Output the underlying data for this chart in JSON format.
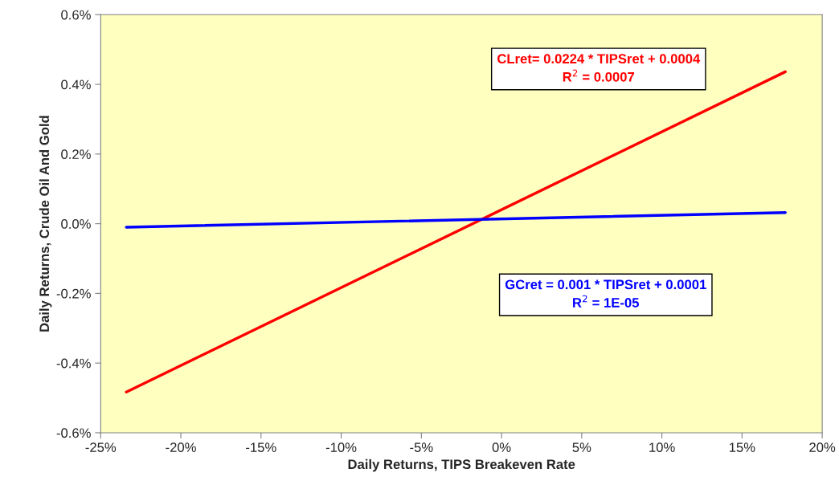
{
  "chart_data": {
    "type": "line",
    "xlabel": "Daily Returns, TIPS Breakeven Rate",
    "ylabel": "Daily Returns, Crude Oil And Gold",
    "x": [
      -0.234,
      0.177
    ],
    "series": [
      {
        "color": "#ff0000",
        "values": [
          -0.00483,
          0.00436
        ]
      },
      {
        "color": "#0000ff",
        "values": [
          -0.0001,
          0.00032
        ]
      }
    ],
    "annotations": [
      "CLret= 0.0224 * TIPSret + 0.0004\nR$^{2}$ = 0.0007",
      "GCret = 0.001 * TIPSret + 0.0001\nR$^{2}$ = 1E-05"
    ],
    "xlim": [
      -0.25,
      0.2
    ],
    "xticks": [
      {
        "value": -0.25,
        "label": "-25%"
      },
      {
        "value": -0.2,
        "label": "-20%"
      },
      {
        "value": -0.15,
        "label": "-15%"
      },
      {
        "value": -0.1,
        "label": "-10%"
      },
      {
        "value": -0.05,
        "label": "-5%"
      },
      {
        "value": 0,
        "label": "0%"
      },
      {
        "value": 0.05,
        "label": "5%"
      },
      {
        "value": 0.1,
        "label": "10%"
      },
      {
        "value": 0.15,
        "label": "15%"
      },
      {
        "value": 0.2,
        "label": "20%"
      }
    ],
    "ylim": [
      -0.006,
      0.006
    ],
    "yticks": [
      {
        "value": -0.006,
        "label": "-0.6%"
      },
      {
        "value": -0.004,
        "label": "-0.4%"
      },
      {
        "value": -0.002,
        "label": "-0.2%"
      },
      {
        "value": 0,
        "label": "0.0%"
      },
      {
        "value": 0.002,
        "label": "0.2%"
      },
      {
        "value": 0.004,
        "label": "0.4%"
      },
      {
        "value": 0.006,
        "label": "0.6%"
      }
    ],
    "grid": false,
    "legend": false
  }
}
